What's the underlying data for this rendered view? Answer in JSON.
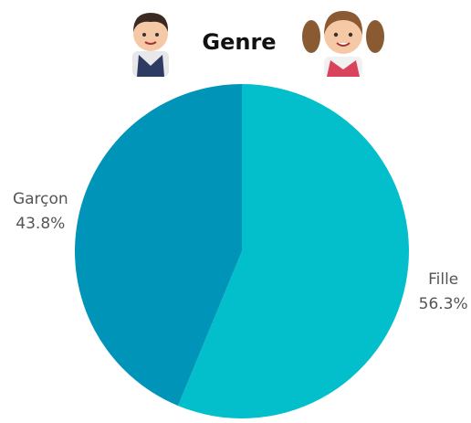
{
  "chart_data": {
    "type": "pie",
    "title": "Genre",
    "categories": [
      "Fille",
      "Garçon"
    ],
    "values": [
      56.3,
      43.8
    ],
    "value_labels": [
      "56.3%",
      "43.8%"
    ],
    "colors": [
      "#02bfcb",
      "#0194b9"
    ]
  }
}
